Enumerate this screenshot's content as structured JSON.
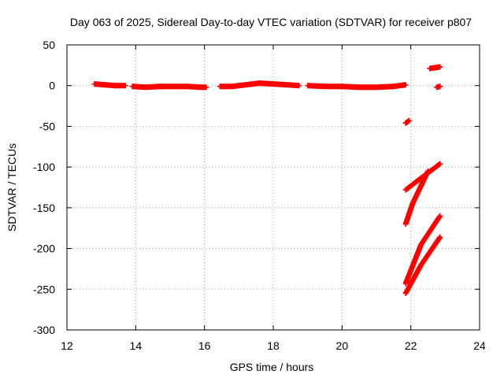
{
  "chart_data": {
    "type": "scatter",
    "title": "Day 063 of 2025, Sidereal Day-to-day VTEC variation (SDTVAR) for receiver p807",
    "xlabel": "GPS time / hours",
    "ylabel": "SDTVAR / TECUs",
    "xlim": [
      12,
      24
    ],
    "ylim": [
      -300,
      50
    ],
    "xticks": [
      12,
      14,
      16,
      18,
      20,
      22,
      24
    ],
    "yticks": [
      50,
      0,
      -50,
      -100,
      -150,
      -200,
      -250,
      -300
    ],
    "grid": true,
    "marker_color": "#ff0000",
    "series": [
      {
        "segments": [
          {
            "x": [
              12.8,
              13.1,
              13.4,
              13.7
            ],
            "y": [
              2,
              1,
              0,
              0
            ]
          },
          {
            "x": [
              13.9,
              14.3,
              14.7,
              15.1,
              15.5,
              15.9,
              16.05
            ],
            "y": [
              -1,
              -2,
              -1,
              -1,
              -1,
              -2,
              -2
            ]
          },
          {
            "x": [
              16.45,
              16.8,
              17.2,
              17.6,
              18.0,
              18.4,
              18.75
            ],
            "y": [
              -1,
              -1,
              1,
              3,
              2,
              1,
              0
            ]
          },
          {
            "x": [
              19.0,
              19.5,
              20.0,
              20.5,
              21.0,
              21.5,
              21.85
            ],
            "y": [
              0,
              -1,
              -1,
              -2,
              -2,
              -1,
              1
            ]
          },
          {
            "x": [
              21.85,
              21.95
            ],
            "y": [
              -46,
              -43
            ]
          },
          {
            "x": [
              22.55,
              22.85
            ],
            "y": [
              21,
              23
            ]
          },
          {
            "x": [
              22.75,
              22.85
            ],
            "y": [
              -2,
              -1
            ]
          },
          {
            "x": [
              21.85,
              22.25,
              22.85
            ],
            "y": [
              -128,
              -115,
              -96
            ]
          },
          {
            "x": [
              21.85,
              22.05,
              22.5
            ],
            "y": [
              -170,
              -145,
              -105
            ]
          },
          {
            "x": [
              21.85,
              22.3,
              22.85
            ],
            "y": [
              -243,
              -195,
              -160
            ]
          },
          {
            "x": [
              21.85,
              22.3,
              22.85
            ],
            "y": [
              -255,
              -220,
              -186
            ]
          }
        ]
      }
    ]
  }
}
